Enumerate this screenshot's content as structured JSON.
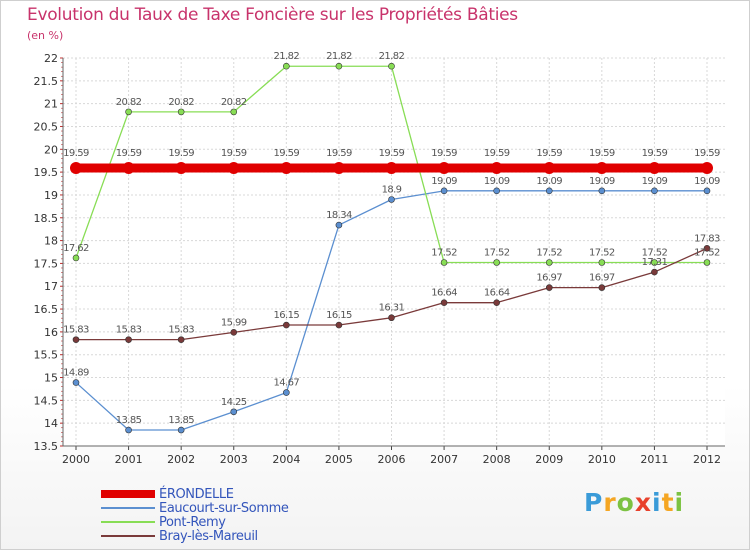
{
  "chart_data": {
    "type": "line",
    "title": "Evolution du Taux de Taxe Foncière sur les Propriétés Bâties",
    "subtitle": "(en %)",
    "xlabel": "",
    "ylabel": "",
    "ylim": [
      13.5,
      22
    ],
    "yticks": [
      "13.5",
      "14",
      "14.5",
      "15",
      "15.5",
      "16",
      "16.5",
      "17",
      "17.5",
      "18",
      "18.5",
      "19",
      "19.5",
      "20",
      "20.5",
      "21",
      "21.5",
      "22"
    ],
    "x": [
      "2000",
      "2001",
      "2002",
      "2003",
      "2004",
      "2005",
      "2006",
      "2007",
      "2008",
      "2009",
      "2010",
      "2011",
      "2012"
    ],
    "grid": true,
    "series": [
      {
        "name": "ÉRONDELLE",
        "color": "#e00000",
        "values": [
          19.59,
          19.59,
          19.59,
          19.59,
          19.59,
          19.59,
          19.59,
          19.59,
          19.59,
          19.59,
          19.59,
          19.59,
          19.59
        ],
        "labels": [
          "19.59",
          "19.59",
          "19.59",
          "19.59",
          "19.59",
          "19.59",
          "19.59",
          "19.59",
          "19.59",
          "19.59",
          "19.59",
          "19.59",
          "19.59"
        ]
      },
      {
        "name": "Eaucourt-sur-Somme",
        "color": "#5b8fd0",
        "values": [
          14.89,
          13.85,
          13.85,
          14.25,
          14.67,
          18.34,
          18.9,
          19.09,
          19.09,
          19.09,
          19.09,
          19.09,
          19.09
        ],
        "labels": [
          "14.89",
          "13.85",
          "13.85",
          "14.25",
          "14.67",
          "18.34",
          "18.9",
          "19.09",
          "19.09",
          "19.09",
          "19.09",
          "19.09",
          "19.09"
        ]
      },
      {
        "name": "Pont-Remy",
        "color": "#88dd55",
        "values": [
          17.62,
          20.82,
          20.82,
          20.82,
          21.82,
          21.82,
          21.82,
          17.52,
          17.52,
          17.52,
          17.52,
          17.52,
          17.52
        ],
        "labels": [
          "17.62",
          "20.82",
          "20.82",
          "20.82",
          "21.82",
          "21.82",
          "21.82",
          "17.52",
          "17.52",
          "17.52",
          "17.52",
          "17.52",
          "17.52"
        ]
      },
      {
        "name": "Bray-lès-Mareuil",
        "color": "#7a3a3a",
        "values": [
          15.83,
          15.83,
          15.83,
          15.99,
          16.15,
          16.15,
          16.31,
          16.64,
          16.64,
          16.97,
          16.97,
          17.31,
          17.83
        ],
        "labels": [
          "15.83",
          "15.83",
          "15.83",
          "15.99",
          "16.15",
          "16.15",
          "16.31",
          "16.64",
          "16.64",
          "16.97",
          "16.97",
          "17.31",
          "17.83"
        ]
      }
    ]
  },
  "logo": {
    "letters": [
      "P",
      "r",
      "o",
      "x",
      "i",
      "t",
      "i"
    ],
    "colors": [
      "#3a9bd8",
      "#f5a623",
      "#7cc242",
      "#e8412c",
      "#3a9bd8",
      "#f5a623",
      "#7cc242"
    ]
  }
}
